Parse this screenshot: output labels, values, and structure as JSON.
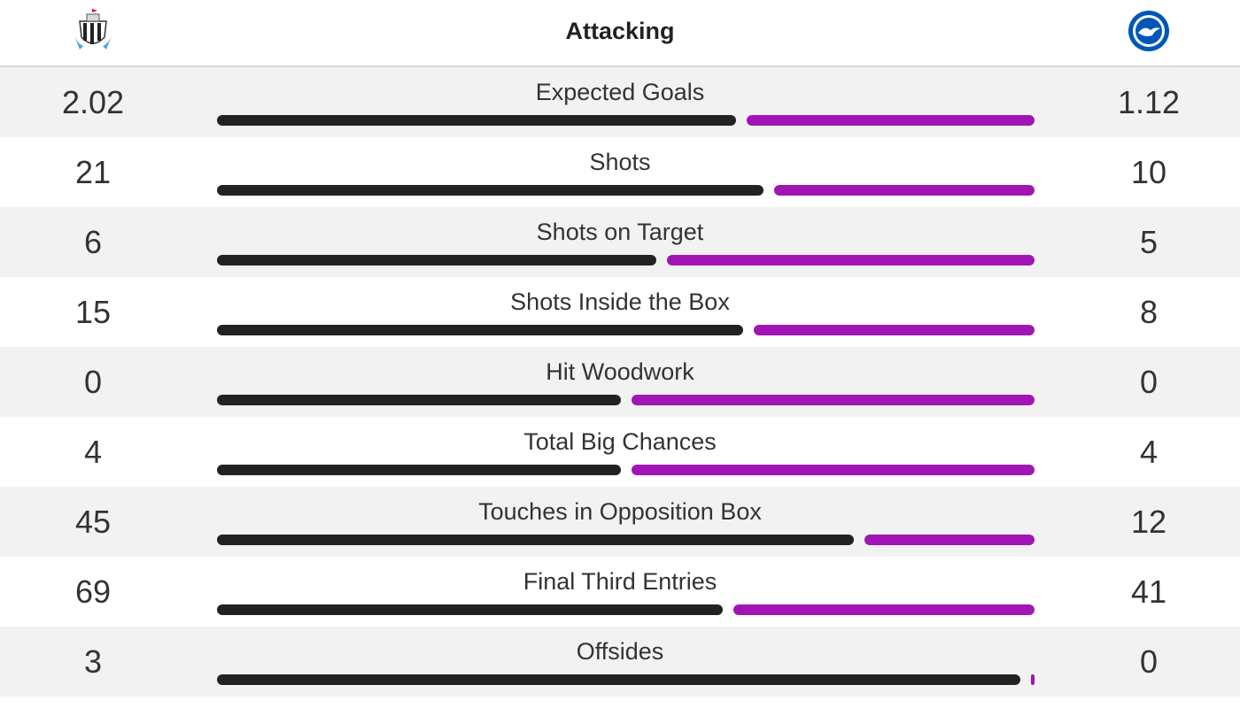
{
  "header": {
    "title": "Attacking",
    "home_crest_icon": "newcastle-crest-icon",
    "away_crest_icon": "brighton-crest-icon"
  },
  "colors": {
    "home_bar": "#222222",
    "away_bar": "#a015b4",
    "row_shade": "#f2f2f2"
  },
  "stats": [
    {
      "label": "Expected Goals",
      "home": "2.02",
      "away": "1.12",
      "home_share": 0.643
    },
    {
      "label": "Shots",
      "home": "21",
      "away": "10",
      "home_share": 0.677
    },
    {
      "label": "Shots on Target",
      "home": "6",
      "away": "5",
      "home_share": 0.545
    },
    {
      "label": "Shots Inside the Box",
      "home": "15",
      "away": "8",
      "home_share": 0.652
    },
    {
      "label": "Hit Woodwork",
      "home": "0",
      "away": "0",
      "home_share": 0.5
    },
    {
      "label": "Total Big Chances",
      "home": "4",
      "away": "4",
      "home_share": 0.5
    },
    {
      "label": "Touches in Opposition Box",
      "home": "45",
      "away": "12",
      "home_share": 0.789
    },
    {
      "label": "Final Third Entries",
      "home": "69",
      "away": "41",
      "home_share": 0.627
    },
    {
      "label": "Offsides",
      "home": "3",
      "away": "0",
      "home_share": 1.0
    }
  ]
}
